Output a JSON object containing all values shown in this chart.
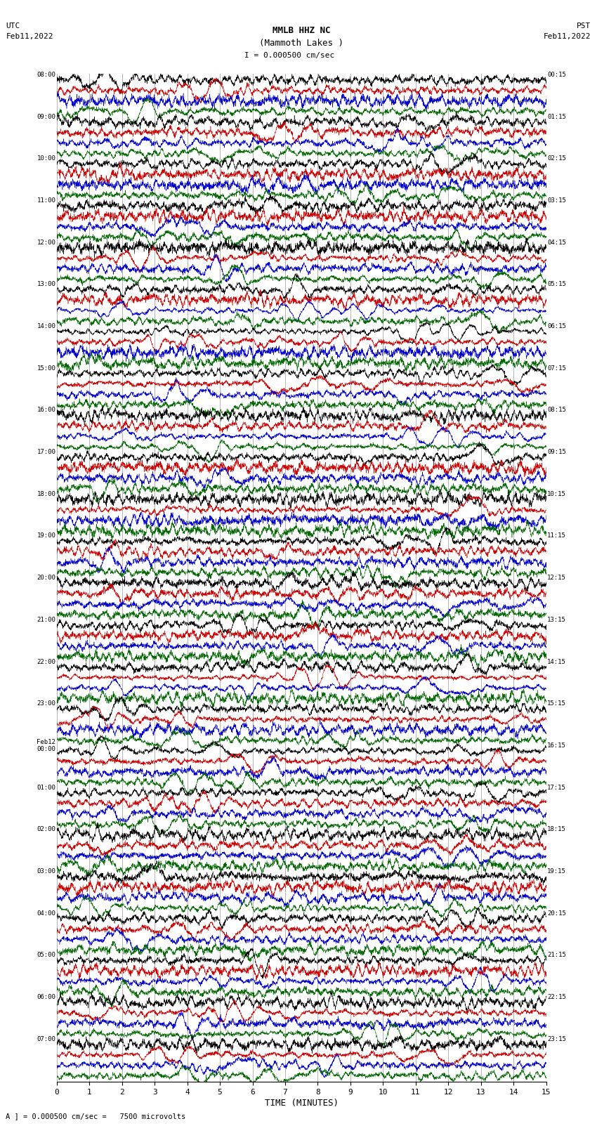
{
  "title_line1": "MMLB HHZ NC",
  "title_line2": "(Mammoth Lakes )",
  "title_line3": "I = 0.000500 cm/sec",
  "left_label_top": "UTC",
  "left_label_date": "Feb11,2022",
  "right_label_top": "PST",
  "right_label_date": "Feb11,2022",
  "xlabel": "TIME (MINUTES)",
  "footer": "A ] = 0.000500 cm/sec =   7500 microvolts",
  "bg_color": "#ffffff",
  "trace_colors": [
    "#000000",
    "#cc0000",
    "#0000cc",
    "#006600"
  ],
  "grid_color": "#999999",
  "utc_labels": [
    "08:00",
    "09:00",
    "10:00",
    "11:00",
    "12:00",
    "13:00",
    "14:00",
    "15:00",
    "16:00",
    "17:00",
    "18:00",
    "19:00",
    "20:00",
    "21:00",
    "22:00",
    "23:00",
    "Feb12\n00:00",
    "01:00",
    "02:00",
    "03:00",
    "04:00",
    "05:00",
    "06:00",
    "07:00"
  ],
  "pst_labels": [
    "00:15",
    "01:15",
    "02:15",
    "03:15",
    "04:15",
    "05:15",
    "06:15",
    "07:15",
    "08:15",
    "09:15",
    "10:15",
    "11:15",
    "12:15",
    "13:15",
    "14:15",
    "15:15",
    "16:15",
    "17:15",
    "18:15",
    "19:15",
    "20:15",
    "21:15",
    "22:15",
    "23:15"
  ],
  "n_rows": 96,
  "n_hours": 24,
  "traces_per_hour": 4,
  "xmin": 0,
  "xmax": 15,
  "xticks": [
    0,
    1,
    2,
    3,
    4,
    5,
    6,
    7,
    8,
    9,
    10,
    11,
    12,
    13,
    14,
    15
  ],
  "amplitude_scale": 0.28,
  "random_seed": 42
}
